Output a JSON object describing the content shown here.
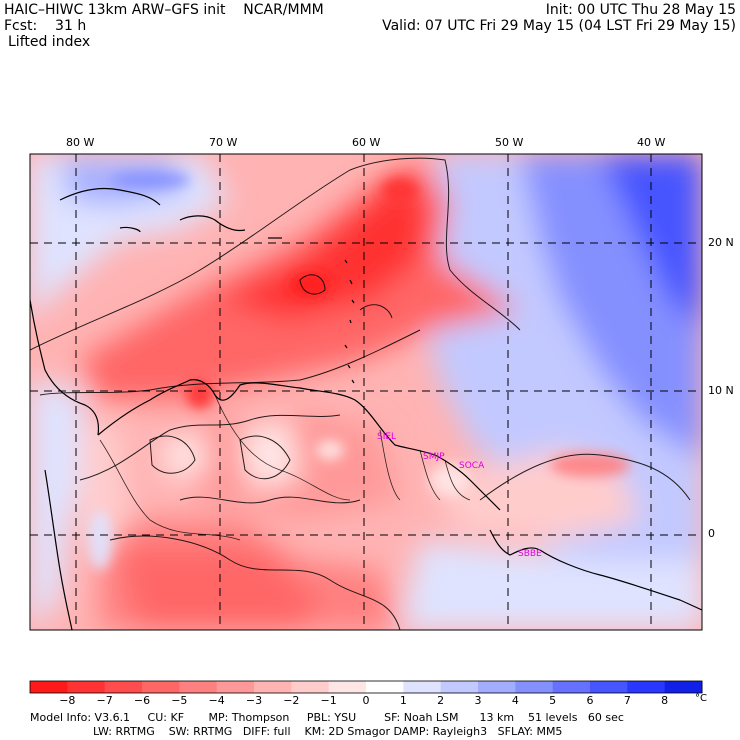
{
  "header": {
    "model_line": "HAIC–HIWC 13km ARW–GFS init    NCAR/MMM",
    "forecast_line": "Fcst:    31 h",
    "field_name": "Lifted index",
    "init_line": "Init: 00 UTC Thu 28 May 15",
    "valid_line": "Valid: 07 UTC Fri 29 May 15 (04 LST Fri 29 May 15)"
  },
  "map": {
    "longitude_labels": [
      "80 W",
      "70 W",
      "60 W",
      "50 W",
      "40 W"
    ],
    "latitude_labels": [
      "20 N",
      "10 N",
      "0"
    ],
    "sites": [
      "SIEL",
      "SMJP",
      "SOCA",
      "SBBE"
    ]
  },
  "colorbar": {
    "tick_labels": [
      "−8",
      "−7",
      "−6",
      "−5",
      "−4",
      "−3",
      "−2",
      "−1",
      "0",
      "1",
      "2",
      "3",
      "4",
      "5",
      "6",
      "7",
      "8"
    ],
    "unit": "°C",
    "colors": [
      "#ff1a1a",
      "#ff3333",
      "#ff4d4d",
      "#ff6666",
      "#ff8080",
      "#ff9999",
      "#ffb3b3",
      "#ffcccc",
      "#ffe6e6",
      "#ffffff",
      "#dfe3ff",
      "#c2c9ff",
      "#a3adff",
      "#8590ff",
      "#6672ff",
      "#4755ff",
      "#2838ff",
      "#1020e6"
    ]
  },
  "footer": {
    "line1": "Model Info: V3.6.1     CU: KF       MP: Thompson     PBL: YSU        SF: Noah LSM      13 km    51 levels   60 sec",
    "line2": "                  LW: RRTMG    SW: RRTMG   DIFF: full    KM: 2D Smagor DAMP: Rayleigh3   SFLAY: MM5"
  }
}
